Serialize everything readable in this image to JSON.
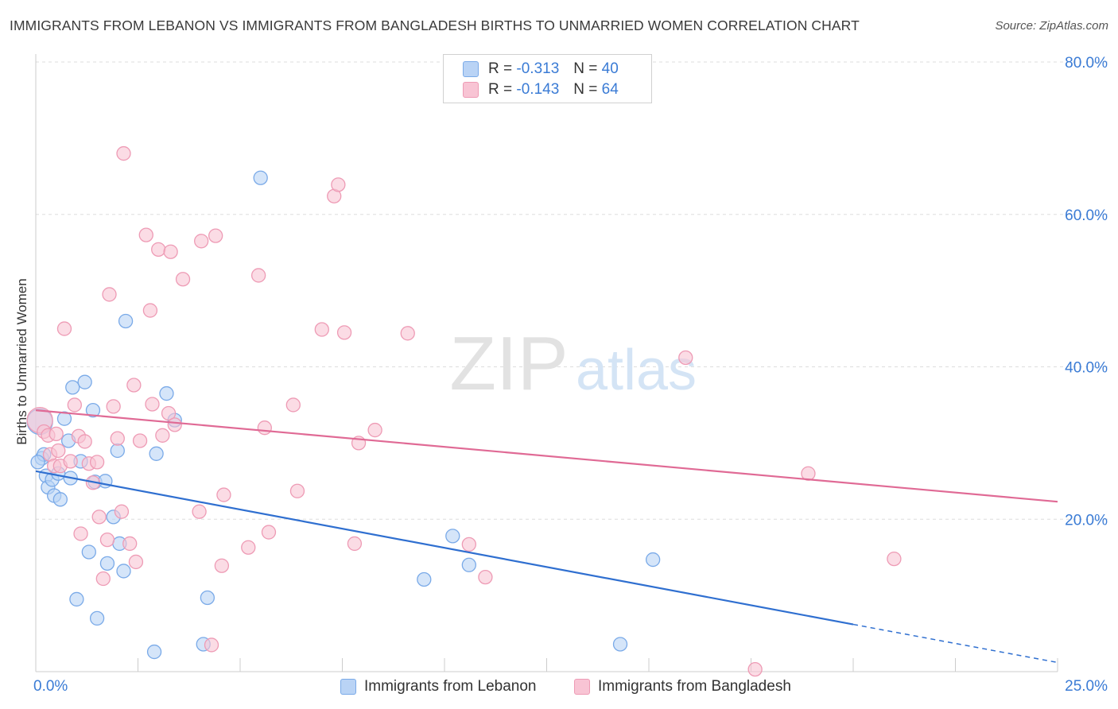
{
  "title": "IMMIGRANTS FROM LEBANON VS IMMIGRANTS FROM BANGLADESH BIRTHS TO UNMARRIED WOMEN CORRELATION CHART",
  "source": "Source: ZipAtlas.com",
  "watermark": {
    "zip": "ZIP",
    "atlas": "atlas"
  },
  "legend": {
    "lebanon": {
      "r_label": "R =",
      "r_value": "-0.313",
      "n_label": "N =",
      "n_value": "40"
    },
    "bangladesh": {
      "r_label": "R =",
      "r_value": "-0.143",
      "n_label": "N =",
      "n_value": "64"
    }
  },
  "colors": {
    "lebanon_fill": "#b9d3f5",
    "lebanon_stroke": "#7aaae8",
    "lebanon_line": "#2f6fd0",
    "bangladesh_fill": "#f8c4d4",
    "bangladesh_stroke": "#ee9bb5",
    "bangladesh_line": "#e06a95",
    "tick_label": "#3a7bd5",
    "grid": "#dddddd"
  },
  "chart_data": {
    "type": "scatter",
    "title": "IMMIGRANTS FROM LEBANON VS IMMIGRANTS FROM BANGLADESH BIRTHS TO UNMARRIED WOMEN CORRELATION CHART",
    "xlabel": "",
    "ylabel": "Births to Unmarried Women",
    "xlim": [
      0,
      25
    ],
    "ylim": [
      0,
      80
    ],
    "x_tick_labels": [
      "0.0%",
      "25.0%"
    ],
    "y_ticks": [
      20,
      40,
      60,
      80
    ],
    "y_tick_labels": [
      "20.0%",
      "40.0%",
      "60.0%",
      "80.0%"
    ],
    "grid": true,
    "legend_position": "top-center",
    "series": [
      {
        "name": "Immigrants from Lebanon",
        "points": [
          [
            0.1,
            32.8
          ],
          [
            0.15,
            28.0
          ],
          [
            0.2,
            28.5
          ],
          [
            0.25,
            25.7
          ],
          [
            0.3,
            24.2
          ],
          [
            0.4,
            25.2
          ],
          [
            0.45,
            23.1
          ],
          [
            0.55,
            26.0
          ],
          [
            0.6,
            22.6
          ],
          [
            0.7,
            33.2
          ],
          [
            0.8,
            30.3
          ],
          [
            0.85,
            25.4
          ],
          [
            0.9,
            37.3
          ],
          [
            1.0,
            9.5
          ],
          [
            1.1,
            27.6
          ],
          [
            1.2,
            38.0
          ],
          [
            1.3,
            15.7
          ],
          [
            1.4,
            34.3
          ],
          [
            1.45,
            24.9
          ],
          [
            1.5,
            7.0
          ],
          [
            1.7,
            25.0
          ],
          [
            1.75,
            14.2
          ],
          [
            1.9,
            20.3
          ],
          [
            2.0,
            29.0
          ],
          [
            2.05,
            16.8
          ],
          [
            2.15,
            13.2
          ],
          [
            2.2,
            46.0
          ],
          [
            2.9,
            2.6
          ],
          [
            2.95,
            28.6
          ],
          [
            3.2,
            36.5
          ],
          [
            3.4,
            33.0
          ],
          [
            4.1,
            3.6
          ],
          [
            4.2,
            9.7
          ],
          [
            5.5,
            64.8
          ],
          [
            9.5,
            12.1
          ],
          [
            10.2,
            17.8
          ],
          [
            10.6,
            14.0
          ],
          [
            14.3,
            3.6
          ],
          [
            15.1,
            14.7
          ],
          [
            0.05,
            27.5
          ]
        ]
      },
      {
        "name": "Immigrants from Bangladesh",
        "points": [
          [
            0.1,
            33.0
          ],
          [
            0.2,
            31.5
          ],
          [
            0.3,
            31.0
          ],
          [
            0.35,
            28.5
          ],
          [
            0.45,
            27.0
          ],
          [
            0.5,
            31.2
          ],
          [
            0.6,
            27.0
          ],
          [
            0.7,
            45.0
          ],
          [
            0.85,
            27.6
          ],
          [
            0.95,
            35.0
          ],
          [
            1.05,
            30.9
          ],
          [
            1.1,
            18.1
          ],
          [
            1.2,
            30.2
          ],
          [
            1.3,
            27.3
          ],
          [
            1.4,
            24.8
          ],
          [
            1.5,
            27.5
          ],
          [
            1.55,
            20.3
          ],
          [
            1.65,
            12.2
          ],
          [
            1.75,
            17.3
          ],
          [
            1.8,
            49.5
          ],
          [
            1.9,
            34.8
          ],
          [
            2.0,
            30.6
          ],
          [
            2.1,
            21.0
          ],
          [
            2.15,
            68.0
          ],
          [
            2.3,
            16.8
          ],
          [
            2.4,
            37.6
          ],
          [
            2.45,
            14.4
          ],
          [
            2.55,
            30.3
          ],
          [
            2.7,
            57.3
          ],
          [
            2.8,
            47.4
          ],
          [
            2.85,
            35.1
          ],
          [
            3.0,
            55.4
          ],
          [
            3.1,
            31.0
          ],
          [
            3.25,
            33.9
          ],
          [
            3.3,
            55.1
          ],
          [
            3.4,
            32.4
          ],
          [
            3.6,
            51.5
          ],
          [
            4.0,
            21.0
          ],
          [
            4.05,
            56.5
          ],
          [
            4.3,
            3.5
          ],
          [
            4.4,
            57.2
          ],
          [
            4.55,
            13.9
          ],
          [
            4.6,
            23.2
          ],
          [
            5.2,
            16.3
          ],
          [
            5.45,
            52.0
          ],
          [
            5.6,
            32.0
          ],
          [
            5.7,
            18.3
          ],
          [
            6.3,
            35.0
          ],
          [
            6.4,
            23.7
          ],
          [
            7.0,
            44.9
          ],
          [
            7.3,
            62.4
          ],
          [
            7.4,
            63.9
          ],
          [
            7.55,
            44.5
          ],
          [
            7.8,
            16.8
          ],
          [
            7.9,
            30.0
          ],
          [
            8.3,
            31.7
          ],
          [
            9.1,
            44.4
          ],
          [
            10.6,
            16.7
          ],
          [
            11.0,
            12.4
          ],
          [
            15.9,
            41.2
          ],
          [
            18.9,
            26.0
          ],
          [
            21.0,
            14.8
          ],
          [
            17.6,
            0.3
          ],
          [
            0.55,
            29.0
          ]
        ]
      }
    ],
    "trend_lines": [
      {
        "name": "Immigrants from Lebanon",
        "x": [
          0,
          20
        ],
        "y": [
          26.3,
          6.2
        ],
        "dashed_extension_x": [
          20,
          25
        ],
        "dashed_extension_y": [
          6.2,
          1.2
        ]
      },
      {
        "name": "Immigrants from Bangladesh",
        "x": [
          0,
          25
        ],
        "y": [
          34.3,
          22.3
        ]
      }
    ]
  }
}
